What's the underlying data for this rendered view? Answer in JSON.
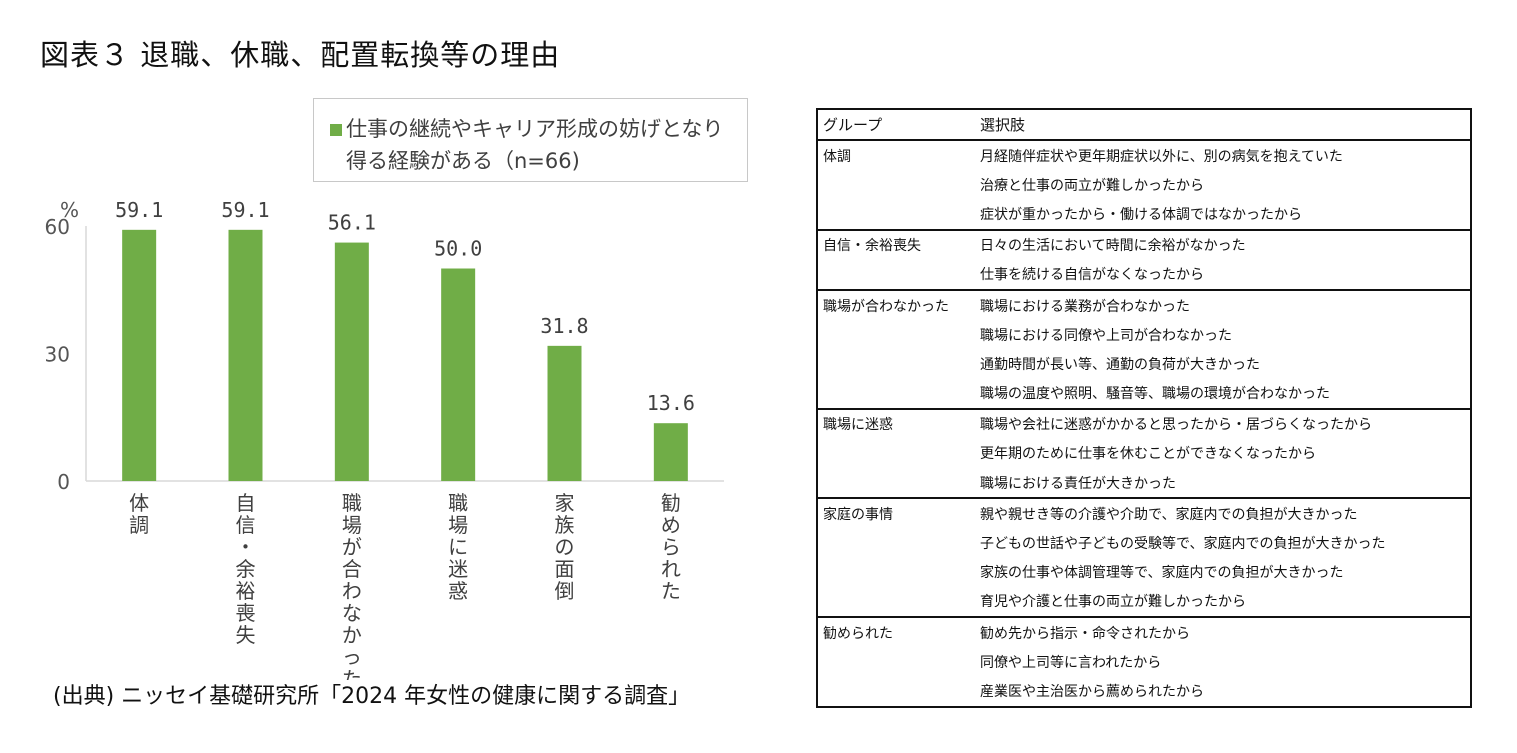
{
  "title": "図表３ 退職、休職、配置転換等の理由",
  "legend": {
    "line1": "仕事の継続やキャリア形成の妨げとなり",
    "line2": "得る経験がある（n=66)"
  },
  "source": "(出典) ニッセイ基礎研究所「2024 年女性の健康に関する調査」",
  "colors": {
    "bar": "#70ad47",
    "axis": "#d9d9d9"
  },
  "chart_data": {
    "type": "bar",
    "categories": [
      "体調",
      "自信・余裕喪失",
      "職場が合わなかった",
      "職場に迷惑",
      "家族の面倒",
      "勧められた"
    ],
    "series": [
      {
        "name": "仕事の継続やキャリア形成の妨げとなり得る経験がある（n=66)",
        "values": [
          59.1,
          59.1,
          56.1,
          50.0,
          31.8,
          13.6
        ]
      }
    ],
    "value_labels": [
      "59.1",
      "59.1",
      "56.1",
      "50.0",
      "31.8",
      "13.6"
    ],
    "ylabel": "%",
    "ylim": [
      0,
      60
    ],
    "yticks": [
      "0",
      "30",
      "60"
    ],
    "category_label_lines": [
      [
        "体",
        "調"
      ],
      [
        "自",
        "信",
        "・",
        "余",
        "裕",
        "喪",
        "失"
      ],
      [
        "職",
        "場",
        "が",
        "合",
        "わ",
        "な",
        "か",
        "っ",
        "た"
      ],
      [
        "職",
        "場",
        "に",
        "迷",
        "惑"
      ],
      [
        "家",
        "族",
        "の",
        "面",
        "倒"
      ],
      [
        "勧",
        "め",
        "ら",
        "れ",
        "た"
      ]
    ]
  },
  "table": {
    "header": {
      "group": "グループ",
      "choice": "選択肢"
    },
    "groups": [
      {
        "name": "体調",
        "items": [
          "月経随伴症状や更年期症状以外に、別の病気を抱えていた",
          "治療と仕事の両立が難しかったから",
          "症状が重かったから・働ける体調ではなかったから"
        ]
      },
      {
        "name": "自信・余裕喪失",
        "items": [
          "日々の生活において時間に余裕がなかった",
          "仕事を続ける自信がなくなったから"
        ]
      },
      {
        "name": "職場が合わなかった",
        "items": [
          "職場における業務が合わなかった",
          "職場における同僚や上司が合わなかった",
          "通勤時間が長い等、通勤の負荷が大きかった",
          "職場の温度や照明、騒音等、職場の環境が合わなかった"
        ]
      },
      {
        "name": "職場に迷惑",
        "items": [
          "職場や会社に迷惑がかかると思ったから・居づらくなったから",
          "更年期のために仕事を休むことができなくなったから",
          "職場における責任が大きかった"
        ]
      },
      {
        "name": "家庭の事情",
        "items": [
          "親や親せき等の介護や介助で、家庭内での負担が大きかった",
          "子どもの世話や子どもの受験等で、家庭内での負担が大きかった",
          "家族の仕事や体調管理等で、家庭内での負担が大きかった",
          "育児や介護と仕事の両立が難しかったから"
        ]
      },
      {
        "name": "勧められた",
        "items": [
          "勧め先から指示・命令されたから",
          "同僚や上司等に言われたから",
          "産業医や主治医から薦められたから"
        ]
      }
    ]
  }
}
